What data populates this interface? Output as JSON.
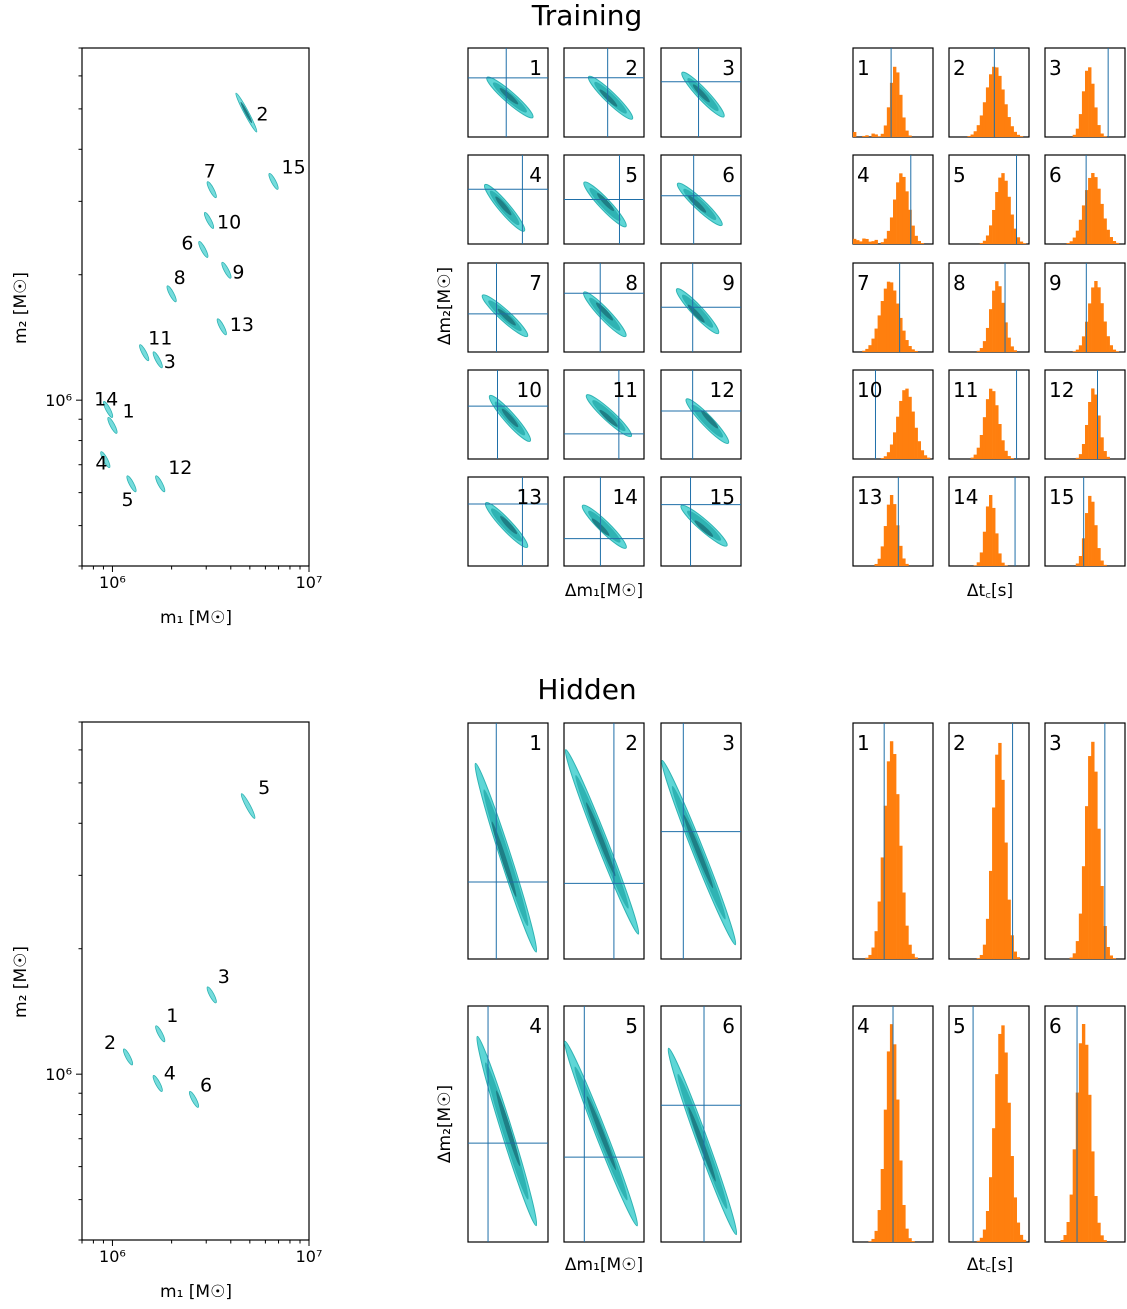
{
  "titles": {
    "training": "Training",
    "hidden": "Hidden"
  },
  "labels": {
    "m1": "m₁ [M☉]",
    "m2": "m₂ [M☉]",
    "dm1": "Δm₁[M☉]",
    "dm2": "Δm₂[M☉]",
    "dtc": "Δt꜀[s]"
  },
  "colors": {
    "contour_light": "#5ed6d6",
    "contour_mid": "#2fb3b3",
    "contour_dark": "#1e7f86",
    "line": "#1f6fa8",
    "hist": "#ff7f0e"
  },
  "chart_data": [
    {
      "type": "scatter",
      "section": "Training",
      "xlabel": "m₁ [M☉]",
      "ylabel": "m₂ [M☉]",
      "xscale": "log",
      "yscale": "log",
      "xlim": [
        700000,
        10000000
      ],
      "ylim": [
        400000,
        7000000
      ],
      "xticks": [
        "10⁶",
        "10⁷"
      ],
      "yticks": [
        "10⁶"
      ],
      "points": [
        {
          "label": "1",
          "m1": 1000000,
          "m2": 870000
        },
        {
          "label": "2",
          "m1": 4800000,
          "m2": 4900000
        },
        {
          "label": "3",
          "m1": 1700000,
          "m2": 1250000
        },
        {
          "label": "4",
          "m1": 920000,
          "m2": 720000
        },
        {
          "label": "5",
          "m1": 1250000,
          "m2": 630000
        },
        {
          "label": "6",
          "m1": 2900000,
          "m2": 2300000
        },
        {
          "label": "7",
          "m1": 3200000,
          "m2": 3200000
        },
        {
          "label": "8",
          "m1": 2000000,
          "m2": 1800000
        },
        {
          "label": "9",
          "m1": 3800000,
          "m2": 2050000
        },
        {
          "label": "10",
          "m1": 3100000,
          "m2": 2700000
        },
        {
          "label": "11",
          "m1": 1450000,
          "m2": 1300000
        },
        {
          "label": "12",
          "m1": 1750000,
          "m2": 630000
        },
        {
          "label": "13",
          "m1": 3600000,
          "m2": 1500000
        },
        {
          "label": "14",
          "m1": 950000,
          "m2": 950000
        },
        {
          "label": "15",
          "m1": 6600000,
          "m2": 3350000
        }
      ]
    },
    {
      "type": "scatter",
      "section": "Hidden",
      "xlabel": "m₁ [M☉]",
      "ylabel": "m₂ [M☉]",
      "xscale": "log",
      "yscale": "log",
      "xlim": [
        700000,
        10000000
      ],
      "ylim": [
        400000,
        7000000
      ],
      "xticks": [
        "10⁶",
        "10⁷"
      ],
      "yticks": [
        "10⁶"
      ],
      "points": [
        {
          "label": "1",
          "m1": 1750000,
          "m2": 1250000
        },
        {
          "label": "2",
          "m1": 1200000,
          "m2": 1100000
        },
        {
          "label": "3",
          "m1": 3200000,
          "m2": 1550000
        },
        {
          "label": "4",
          "m1": 1700000,
          "m2": 950000
        },
        {
          "label": "5",
          "m1": 4900000,
          "m2": 4400000
        },
        {
          "label": "6",
          "m1": 2600000,
          "m2": 870000
        }
      ]
    },
    {
      "type": "contour",
      "section": "Training",
      "xlabel": "Δm₁[M☉]",
      "ylabel": "Δm₂[M☉]",
      "panels": [
        "1",
        "2",
        "3",
        "4",
        "5",
        "6",
        "7",
        "8",
        "9",
        "10",
        "11",
        "12",
        "13",
        "14",
        "15"
      ]
    },
    {
      "type": "bar",
      "section": "Training",
      "xlabel": "Δt꜀[s]",
      "panels": [
        "1",
        "2",
        "3",
        "4",
        "5",
        "6",
        "7",
        "8",
        "9",
        "10",
        "11",
        "12",
        "13",
        "14",
        "15"
      ]
    },
    {
      "type": "contour",
      "section": "Hidden",
      "xlabel": "Δm₁[M☉]",
      "ylabel": "Δm₂[M☉]",
      "panels": [
        "1",
        "2",
        "3",
        "4",
        "5",
        "6"
      ]
    },
    {
      "type": "bar",
      "section": "Hidden",
      "xlabel": "Δt꜀[s]",
      "panels": [
        "1",
        "2",
        "3",
        "4",
        "5",
        "6"
      ]
    }
  ]
}
